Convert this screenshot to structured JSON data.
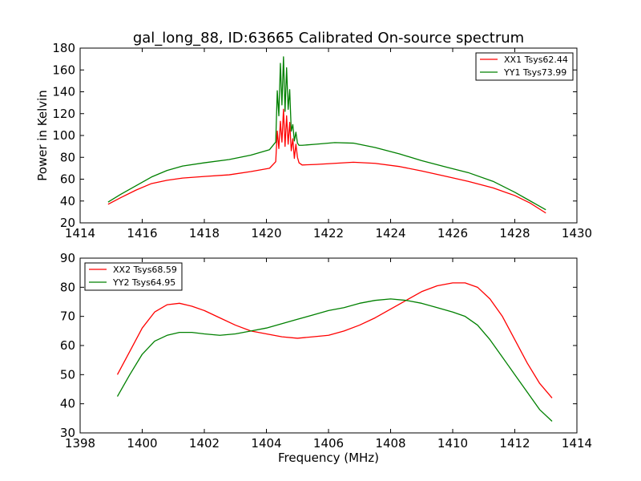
{
  "figure": {
    "title": "gal_long_88, ID:63665 Calibrated On-source spectrum",
    "background": "#ffffff"
  },
  "chart_data": [
    {
      "type": "line",
      "ylabel": "Power in Kelvin",
      "xlabel": "",
      "xlim": [
        1414,
        1430
      ],
      "ylim": [
        20,
        180
      ],
      "xticks": [
        "1414",
        "1416",
        "1418",
        "1420",
        "1422",
        "1424",
        "1426",
        "1428",
        "1430"
      ],
      "yticks": [
        "20",
        "40",
        "60",
        "80",
        "100",
        "120",
        "140",
        "160",
        "180"
      ],
      "legend_position": "top-right",
      "grid": false,
      "series": [
        {
          "name": "XX1 Tsys62.44",
          "color": "#ff0000",
          "x": [
            1414.9,
            1415.3,
            1415.8,
            1416.3,
            1416.8,
            1417.3,
            1418.0,
            1418.8,
            1419.5,
            1420.1,
            1420.3,
            1420.35,
            1420.4,
            1420.45,
            1420.5,
            1420.55,
            1420.6,
            1420.65,
            1420.7,
            1420.75,
            1420.8,
            1420.85,
            1420.9,
            1420.95,
            1421.0,
            1421.05,
            1421.15,
            1421.6,
            1422.2,
            1422.8,
            1423.5,
            1424.3,
            1425.0,
            1425.8,
            1426.5,
            1427.3,
            1428.0,
            1428.5,
            1429.0
          ],
          "y": [
            37,
            43,
            50,
            56,
            59,
            61,
            62.5,
            64,
            67,
            70,
            76,
            104,
            88,
            113,
            94,
            124,
            90,
            118,
            92,
            112,
            86,
            97,
            79,
            92,
            80,
            75,
            73,
            73.5,
            74.5,
            75.5,
            74.5,
            71.5,
            67.5,
            62.5,
            58,
            52,
            45,
            38,
            29
          ]
        },
        {
          "name": "YY1 Tsys73.99",
          "color": "#008000",
          "x": [
            1414.9,
            1415.3,
            1415.8,
            1416.3,
            1416.8,
            1417.3,
            1418.0,
            1418.8,
            1419.5,
            1420.1,
            1420.3,
            1420.35,
            1420.4,
            1420.45,
            1420.5,
            1420.55,
            1420.6,
            1420.65,
            1420.7,
            1420.75,
            1420.8,
            1420.85,
            1420.9,
            1420.95,
            1421.0,
            1421.05,
            1421.15,
            1421.6,
            1422.2,
            1422.8,
            1423.5,
            1424.3,
            1425.0,
            1425.8,
            1426.5,
            1427.3,
            1428.0,
            1428.5,
            1429.0
          ],
          "y": [
            39,
            46,
            54,
            62,
            68,
            72,
            75,
            78,
            82,
            87,
            94,
            141,
            118,
            166,
            128,
            172,
            122,
            162,
            124,
            142,
            104,
            110,
            95,
            103,
            93,
            91,
            91,
            92,
            93.5,
            93,
            89,
            83,
            77,
            71,
            66,
            58,
            48,
            40,
            32
          ]
        }
      ]
    },
    {
      "type": "line",
      "ylabel": "",
      "xlabel": "Frequency (MHz)",
      "xlim": [
        1398,
        1414
      ],
      "ylim": [
        30,
        90
      ],
      "xticks": [
        "1398",
        "1400",
        "1402",
        "1404",
        "1406",
        "1408",
        "1410",
        "1412",
        "1414"
      ],
      "yticks": [
        "30",
        "40",
        "50",
        "60",
        "70",
        "80",
        "90"
      ],
      "legend_position": "top-left",
      "grid": false,
      "series": [
        {
          "name": "XX2 Tsys68.59",
          "color": "#ff0000",
          "x": [
            1399.2,
            1399.6,
            1400.0,
            1400.4,
            1400.8,
            1401.2,
            1401.6,
            1402.0,
            1402.5,
            1403.0,
            1403.5,
            1404.0,
            1404.5,
            1405.0,
            1405.5,
            1406.0,
            1406.5,
            1407.0,
            1407.5,
            1408.0,
            1408.5,
            1409.0,
            1409.5,
            1410.0,
            1410.4,
            1410.8,
            1411.2,
            1411.6,
            1412.0,
            1412.4,
            1412.8,
            1413.2
          ],
          "y": [
            50,
            58,
            66,
            71.5,
            74,
            74.5,
            73.5,
            72,
            69.5,
            67,
            65,
            64,
            63,
            62.5,
            63,
            63.5,
            65,
            67,
            69.5,
            72.5,
            75.5,
            78.5,
            80.5,
            81.5,
            81.5,
            80,
            76,
            70,
            62,
            54,
            47,
            42
          ]
        },
        {
          "name": "YY2 Tsys64.95",
          "color": "#008000",
          "x": [
            1399.2,
            1399.6,
            1400.0,
            1400.4,
            1400.8,
            1401.2,
            1401.6,
            1402.0,
            1402.5,
            1403.0,
            1403.5,
            1404.0,
            1404.5,
            1405.0,
            1405.5,
            1406.0,
            1406.5,
            1407.0,
            1407.5,
            1408.0,
            1408.5,
            1409.0,
            1409.5,
            1410.0,
            1410.4,
            1410.8,
            1411.2,
            1411.6,
            1412.0,
            1412.4,
            1412.8,
            1413.2
          ],
          "y": [
            42.5,
            50,
            57,
            61.5,
            63.5,
            64.5,
            64.5,
            64,
            63.5,
            64,
            65,
            66,
            67.5,
            69,
            70.5,
            72,
            73,
            74.5,
            75.5,
            76,
            75.5,
            74.5,
            73,
            71.5,
            70,
            67,
            62,
            56,
            50,
            44,
            38,
            34
          ]
        }
      ]
    }
  ]
}
